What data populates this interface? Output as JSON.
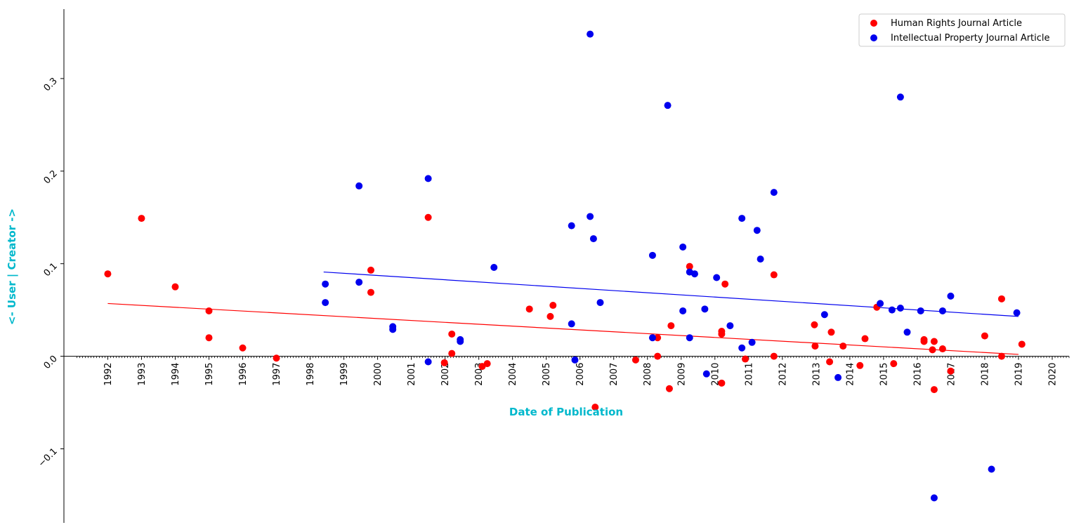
{
  "chart_data": {
    "type": "scatter",
    "title": "",
    "xlabel": "Date of Publication",
    "ylabel": "<- User | Creator ->",
    "label_color": "#00b8cc",
    "xlim": [
      1990.7,
      2020.5
    ],
    "ylim": [
      -0.18,
      0.375
    ],
    "x_ticks": [
      "1992",
      "1993",
      "1994",
      "1995",
      "1996",
      "1997",
      "1998",
      "1999",
      "2000",
      "2001",
      "2002",
      "2003",
      "2004",
      "2005",
      "2006",
      "2007",
      "2008",
      "2009",
      "2010",
      "2011",
      "2012",
      "2013",
      "2014",
      "2015",
      "2016",
      "2017",
      "2018",
      "2019",
      "2020"
    ],
    "y_ticks": [
      {
        "value": -0.1,
        "label": "−0.1"
      },
      {
        "value": 0.0,
        "label": "0.0"
      },
      {
        "value": 0.1,
        "label": "0.1"
      },
      {
        "value": 0.2,
        "label": "0.2"
      },
      {
        "value": 0.3,
        "label": "0.3"
      }
    ],
    "grid": false,
    "legend_position": "top-right",
    "series": [
      {
        "name": "Human Rights Journal Article",
        "color": "#ff0000",
        "trend": {
          "x": [
            1992.0,
            2019.0
          ],
          "y": [
            0.057,
            0.002
          ]
        },
        "points": [
          [
            1992.0,
            0.089
          ],
          [
            1993.0,
            0.149
          ],
          [
            1994.0,
            0.075
          ],
          [
            1995.0,
            0.049
          ],
          [
            1995.0,
            0.02
          ],
          [
            1996.0,
            0.009
          ],
          [
            1997.0,
            -0.002
          ],
          [
            1999.8,
            0.093
          ],
          [
            1999.8,
            0.069
          ],
          [
            2001.5,
            0.15
          ],
          [
            2001.98,
            -0.007
          ],
          [
            2002.2,
            0.024
          ],
          [
            2002.2,
            0.003
          ],
          [
            2003.1,
            -0.011
          ],
          [
            2003.25,
            -0.008
          ],
          [
            2004.5,
            0.051
          ],
          [
            2005.12,
            0.043
          ],
          [
            2005.2,
            0.055
          ],
          [
            2006.45,
            -0.055
          ],
          [
            2007.65,
            -0.004
          ],
          [
            2008.3,
            0.02
          ],
          [
            2008.3,
            0.0
          ],
          [
            2008.65,
            -0.035
          ],
          [
            2008.7,
            0.033
          ],
          [
            2009.25,
            0.097
          ],
          [
            2010.2,
            0.027
          ],
          [
            2010.2,
            0.024
          ],
          [
            2010.2,
            -0.029
          ],
          [
            2010.3,
            0.078
          ],
          [
            2010.9,
            -0.003
          ],
          [
            2011.75,
            0.088
          ],
          [
            2011.75,
            0.0
          ],
          [
            2012.95,
            0.034
          ],
          [
            2012.97,
            0.011
          ],
          [
            2013.4,
            -0.006
          ],
          [
            2013.45,
            0.026
          ],
          [
            2013.8,
            0.011
          ],
          [
            2014.3,
            -0.01
          ],
          [
            2014.45,
            0.019
          ],
          [
            2014.8,
            0.053
          ],
          [
            2015.3,
            -0.008
          ],
          [
            2016.2,
            0.018
          ],
          [
            2016.2,
            0.016
          ],
          [
            2016.45,
            0.007
          ],
          [
            2016.5,
            0.016
          ],
          [
            2016.5,
            -0.036
          ],
          [
            2016.75,
            0.008
          ],
          [
            2016.99,
            -0.016
          ],
          [
            2018.0,
            0.022
          ],
          [
            2018.5,
            0.062
          ],
          [
            2018.5,
            0.0
          ],
          [
            2019.1,
            0.013
          ]
        ]
      },
      {
        "name": "Intellectual Property Journal Article",
        "color": "#0000ee",
        "trend": {
          "x": [
            1998.4,
            2019.0
          ],
          "y": [
            0.091,
            0.043
          ]
        },
        "points": [
          [
            1998.45,
            0.078
          ],
          [
            1998.45,
            0.058
          ],
          [
            1999.45,
            0.08
          ],
          [
            1999.45,
            0.184
          ],
          [
            2000.45,
            0.032
          ],
          [
            2000.45,
            0.029
          ],
          [
            2001.5,
            0.192
          ],
          [
            2001.5,
            -0.006
          ],
          [
            2002.45,
            0.018
          ],
          [
            2002.45,
            0.016
          ],
          [
            2003.45,
            0.096
          ],
          [
            2005.75,
            0.141
          ],
          [
            2005.75,
            0.035
          ],
          [
            2005.85,
            -0.004
          ],
          [
            2006.3,
            0.348
          ],
          [
            2006.3,
            0.151
          ],
          [
            2006.4,
            0.127
          ],
          [
            2006.6,
            0.058
          ],
          [
            2008.15,
            0.109
          ],
          [
            2008.15,
            0.02
          ],
          [
            2008.6,
            0.271
          ],
          [
            2009.05,
            0.118
          ],
          [
            2009.05,
            0.049
          ],
          [
            2009.25,
            0.091
          ],
          [
            2009.25,
            0.02
          ],
          [
            2009.4,
            0.089
          ],
          [
            2009.7,
            0.051
          ],
          [
            2009.75,
            -0.019
          ],
          [
            2010.05,
            0.085
          ],
          [
            2010.45,
            0.033
          ],
          [
            2010.8,
            0.149
          ],
          [
            2010.8,
            0.009
          ],
          [
            2011.1,
            0.015
          ],
          [
            2011.25,
            0.136
          ],
          [
            2011.35,
            0.105
          ],
          [
            2011.75,
            0.177
          ],
          [
            2013.25,
            0.045
          ],
          [
            2013.65,
            -0.023
          ],
          [
            2014.9,
            0.057
          ],
          [
            2015.25,
            0.05
          ],
          [
            2015.5,
            0.28
          ],
          [
            2015.5,
            0.052
          ],
          [
            2015.7,
            0.026
          ],
          [
            2016.1,
            0.049
          ],
          [
            2016.5,
            -0.153
          ],
          [
            2016.75,
            0.049
          ],
          [
            2016.99,
            0.065
          ],
          [
            2018.2,
            -0.122
          ],
          [
            2018.95,
            0.047
          ]
        ]
      }
    ]
  }
}
